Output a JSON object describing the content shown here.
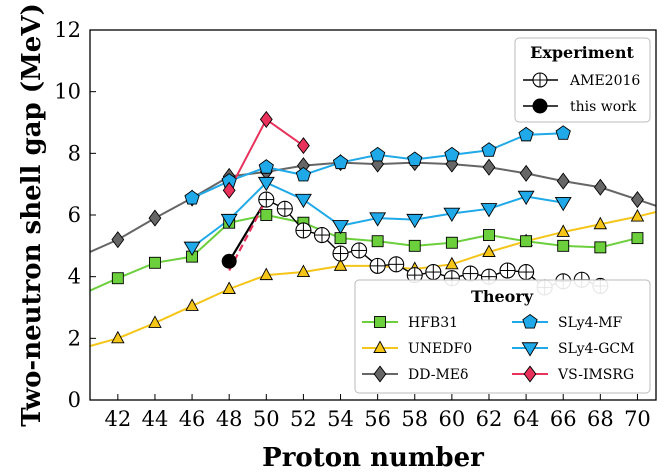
{
  "chart_data": {
    "type": "line",
    "xlabel": "Proton number",
    "ylabel": "Two-neutron shell gap (MeV)",
    "xlim": [
      40.5,
      71
    ],
    "ylim": [
      0,
      12
    ],
    "xticks": [
      42,
      44,
      46,
      48,
      50,
      52,
      54,
      56,
      58,
      60,
      62,
      64,
      66,
      68,
      70
    ],
    "yticks": [
      0,
      2,
      4,
      6,
      8,
      10,
      12
    ],
    "grid": false,
    "legends": [
      {
        "title": "Experiment",
        "placement": "top-right",
        "entries": [
          "AME2016",
          "this work"
        ]
      },
      {
        "title": "Theory",
        "placement": "bottom-right",
        "entries": [
          "HFB31",
          "UNEDF0",
          "DD-MEδ",
          "SLy4-MF",
          "SLy4-GCM",
          "VS-IMSRG"
        ]
      }
    ],
    "series": [
      {
        "name": "UNEDF0",
        "color": "#f5c518",
        "marker": "triangle-up",
        "x": [
          40.5,
          42,
          44,
          46,
          48,
          50,
          52,
          54,
          56,
          58,
          60,
          62,
          64,
          66,
          68,
          70,
          71
        ],
        "y": [
          1.75,
          2.0,
          2.5,
          3.05,
          3.6,
          4.05,
          4.15,
          4.35,
          4.35,
          4.25,
          4.4,
          4.8,
          5.15,
          5.45,
          5.7,
          5.95,
          6.1
        ],
        "marker_x": [
          42,
          44,
          46,
          48,
          50,
          52,
          54,
          56,
          58,
          60,
          62,
          64,
          66,
          68,
          70
        ]
      },
      {
        "name": "DD-MEδ",
        "color": "#666666",
        "marker": "diamond",
        "x": [
          40.5,
          42,
          44,
          46,
          48,
          50,
          52,
          54,
          56,
          58,
          60,
          62,
          64,
          66,
          68,
          70,
          71
        ],
        "y": [
          4.8,
          5.2,
          5.9,
          6.55,
          7.25,
          7.4,
          7.6,
          7.7,
          7.65,
          7.7,
          7.65,
          7.55,
          7.35,
          7.1,
          6.9,
          6.5,
          6.3
        ],
        "marker_x": [
          42,
          44,
          46,
          48,
          50,
          52,
          54,
          56,
          58,
          60,
          62,
          64,
          66,
          68,
          70
        ]
      },
      {
        "name": "HFB31",
        "color": "#6ccf3c",
        "marker": "square",
        "x": [
          40.5,
          42,
          44,
          46,
          48,
          50,
          52,
          54,
          56,
          58,
          60,
          62,
          64,
          66,
          68,
          70
        ],
        "y": [
          3.55,
          3.95,
          4.45,
          4.65,
          5.75,
          6.0,
          5.75,
          5.25,
          5.15,
          5.0,
          5.1,
          5.35,
          5.15,
          5.0,
          4.95,
          5.25
        ],
        "marker_x": [
          42,
          44,
          46,
          48,
          50,
          52,
          54,
          56,
          58,
          60,
          62,
          64,
          66,
          68,
          70
        ]
      },
      {
        "name": "SLy4-MF",
        "color": "#1fa9e8",
        "marker": "pentagon",
        "x": [
          46,
          48,
          50,
          52,
          54,
          56,
          58,
          60,
          62,
          64,
          66
        ],
        "y": [
          6.55,
          7.1,
          7.55,
          7.3,
          7.7,
          7.95,
          7.8,
          7.95,
          8.1,
          8.6,
          8.65
        ]
      },
      {
        "name": "SLy4-GCM",
        "color": "#1fa9e8",
        "marker": "triangle-down",
        "x": [
          46,
          48,
          50,
          52,
          54,
          56,
          58,
          60,
          62,
          64,
          66
        ],
        "y": [
          4.95,
          5.85,
          7.05,
          6.5,
          5.65,
          5.9,
          5.85,
          6.05,
          6.2,
          6.6,
          6.4
        ]
      },
      {
        "name": "VS-IMSRG",
        "color": "#e8315b",
        "marker": "diamond",
        "x": [
          48,
          50,
          52
        ],
        "y": [
          6.8,
          9.1,
          8.25
        ]
      },
      {
        "name": "AME2016",
        "color": "#000000",
        "marker": "circle-open",
        "x": [
          50,
          51,
          52,
          53,
          54,
          55,
          56,
          57,
          58,
          59,
          60,
          61,
          62,
          63,
          64,
          65,
          66,
          67,
          68
        ],
        "y": [
          6.5,
          6.2,
          5.5,
          5.35,
          4.75,
          4.85,
          4.35,
          4.4,
          4.05,
          4.15,
          3.95,
          4.1,
          4.0,
          4.2,
          4.15,
          3.65,
          3.85,
          3.9,
          3.7
        ]
      },
      {
        "name": "this work",
        "color": "#000000",
        "marker": "circle-filled",
        "x": [
          48
        ],
        "y": [
          4.5
        ]
      }
    ],
    "connectors": [
      {
        "from": [
          48,
          4.5
        ],
        "to": [
          50,
          6.5
        ],
        "color": "#000000",
        "style": "solid"
      },
      {
        "from": [
          48,
          4.2
        ],
        "to": [
          50,
          6.5
        ],
        "color": "#e8315b",
        "style": "dashed"
      }
    ]
  }
}
